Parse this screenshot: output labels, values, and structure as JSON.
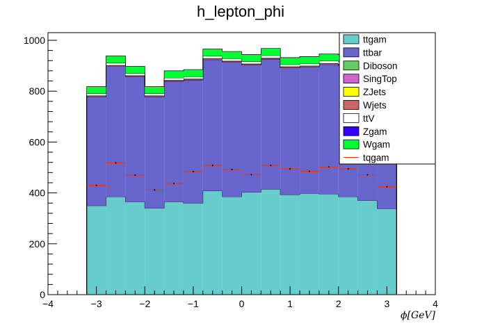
{
  "chart_data": {
    "type": "bar",
    "title": "h_lepton_phi",
    "xlabel": "ϕ[GeV]",
    "ylabel": "",
    "xlim": [
      -4,
      4
    ],
    "ylim": [
      0,
      1030
    ],
    "x_ticks": [
      "−4",
      "−3",
      "−2",
      "−1",
      "0",
      "1",
      "2",
      "3",
      "4"
    ],
    "y_ticks": [
      "0",
      "200",
      "400",
      "600",
      "800",
      "1000"
    ],
    "bin_edges": [
      -3.2,
      -2.8,
      -2.4,
      -2.0,
      -1.6,
      -1.2,
      -0.8,
      -0.4,
      0.0,
      0.4,
      0.8,
      1.2,
      1.6,
      2.0,
      2.4,
      2.8,
      3.2
    ],
    "stack_series": [
      {
        "name": "ttgam",
        "color": "#66cccc",
        "values": [
          350,
          385,
          365,
          340,
          365,
          360,
          408,
          385,
          403,
          415,
          393,
          398,
          396,
          385,
          370,
          338
        ]
      },
      {
        "name": "ttbar",
        "color": "#6666cc",
        "values": [
          428,
          512,
          492,
          438,
          474,
          484,
          516,
          529,
          500,
          511,
          499,
          497,
          509,
          517,
          500,
          512
        ]
      },
      {
        "name": "Diboson",
        "color": "#66cc66",
        "values": [
          0,
          0,
          0,
          0,
          0,
          0,
          0,
          0,
          0,
          0,
          0,
          0,
          0,
          0,
          0,
          0
        ]
      },
      {
        "name": "SingTop",
        "color": "#cc66cc",
        "values": [
          3,
          3,
          3,
          3,
          3,
          3,
          3,
          3,
          3,
          3,
          3,
          3,
          3,
          3,
          3,
          3
        ]
      },
      {
        "name": "ZJets",
        "color": "#ffff00",
        "values": [
          0,
          0,
          0,
          0,
          0,
          0,
          0,
          0,
          0,
          0,
          0,
          0,
          0,
          0,
          0,
          0
        ]
      },
      {
        "name": "Wjets",
        "color": "#cc6666",
        "values": [
          2,
          2,
          2,
          2,
          2,
          2,
          2,
          2,
          2,
          2,
          2,
          2,
          2,
          2,
          2,
          2
        ]
      },
      {
        "name": "ttV",
        "color": "#ffffff",
        "values": [
          8,
          9,
          8,
          8,
          8,
          8,
          9,
          9,
          9,
          9,
          8,
          8,
          9,
          9,
          9,
          9
        ]
      },
      {
        "name": "Zgam",
        "color": "#3300ff",
        "values": [
          0,
          0,
          0,
          0,
          0,
          0,
          0,
          0,
          0,
          0,
          0,
          0,
          0,
          0,
          0,
          0
        ]
      },
      {
        "name": "Wgam",
        "color": "#00ff33",
        "values": [
          27,
          28,
          28,
          27,
          28,
          28,
          28,
          28,
          27,
          28,
          27,
          28,
          27,
          28,
          28,
          28
        ]
      }
    ],
    "line_series": {
      "name": "tqgam",
      "color": "#ff3300",
      "values": [
        430,
        518,
        470,
        412,
        437,
        484,
        508,
        492,
        472,
        508,
        495,
        485,
        502,
        495,
        471,
        424
      ]
    },
    "legend": [
      "ttgam",
      "ttbar",
      "Diboson",
      "SingTop",
      "ZJets",
      "Wjets",
      "ttV",
      "Zgam",
      "Wgam",
      "tqgam"
    ],
    "legend_position": "top-right"
  }
}
